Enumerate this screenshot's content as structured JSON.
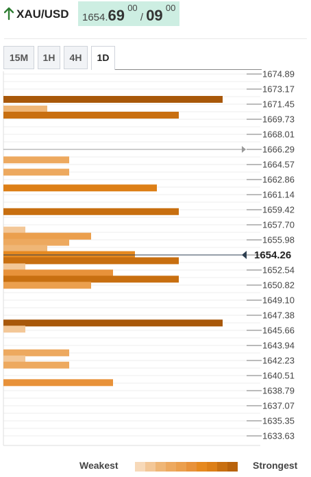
{
  "header": {
    "symbol": "XAU/USD",
    "price_prefix": "1654.",
    "price_big1": "69",
    "price_sup1": "00",
    "price_sep": "/",
    "price_big2": "09",
    "price_sup2": "00",
    "arrow_icon": "arrow-up-icon",
    "arrow_color": "#2e7d32"
  },
  "tabs": [
    {
      "label": "15M",
      "active": false
    },
    {
      "label": "1H",
      "active": false
    },
    {
      "label": "4H",
      "active": false
    },
    {
      "label": "1D",
      "active": true
    }
  ],
  "chart_data": {
    "type": "bar",
    "orientation": "horizontal",
    "y_axis_ticks": [
      "1674.89",
      "1673.17",
      "1671.45",
      "1669.73",
      "1668.01",
      "1666.29",
      "1664.57",
      "1662.86",
      "1661.14",
      "1659.42",
      "1657.70",
      "1655.98",
      "1654.26",
      "1652.54",
      "1650.82",
      "1649.10",
      "1647.38",
      "1645.66",
      "1643.94",
      "1642.23",
      "1640.51",
      "1638.79",
      "1637.07",
      "1635.35",
      "1633.63"
    ],
    "ylim": [
      1633.63,
      1674.89
    ],
    "current_price": 1654.26,
    "reference_price": 1666.29,
    "bars": [
      {
        "price": 1672.0,
        "strength": 10
      },
      {
        "price": 1670.9,
        "strength": 2
      },
      {
        "price": 1670.2,
        "strength": 8
      },
      {
        "price": 1665.1,
        "strength": 3
      },
      {
        "price": 1663.7,
        "strength": 3
      },
      {
        "price": 1661.9,
        "strength": 7
      },
      {
        "price": 1659.2,
        "strength": 8
      },
      {
        "price": 1657.1,
        "strength": 1
      },
      {
        "price": 1656.4,
        "strength": 4
      },
      {
        "price": 1655.7,
        "strength": 3
      },
      {
        "price": 1655.0,
        "strength": 2
      },
      {
        "price": 1654.3,
        "strength": 6
      },
      {
        "price": 1653.6,
        "strength": 8
      },
      {
        "price": 1652.9,
        "strength": 1
      },
      {
        "price": 1652.2,
        "strength": 5
      },
      {
        "price": 1651.5,
        "strength": 8
      },
      {
        "price": 1650.8,
        "strength": 4
      },
      {
        "price": 1646.5,
        "strength": 10
      },
      {
        "price": 1645.8,
        "strength": 1
      },
      {
        "price": 1643.1,
        "strength": 3
      },
      {
        "price": 1642.4,
        "strength": 1
      },
      {
        "price": 1641.7,
        "strength": 3
      },
      {
        "price": 1639.7,
        "strength": 5
      }
    ],
    "strength_colors": [
      "#f7d9b9",
      "#f3c797",
      "#efb676",
      "#eda95f",
      "#eb9f4d",
      "#e8923a",
      "#e6891f",
      "#dd7f17",
      "#c86f10",
      "#b8620b",
      "#a8580a"
    ]
  },
  "legend": {
    "weakest": "Weakest",
    "strongest": "Strongest"
  }
}
